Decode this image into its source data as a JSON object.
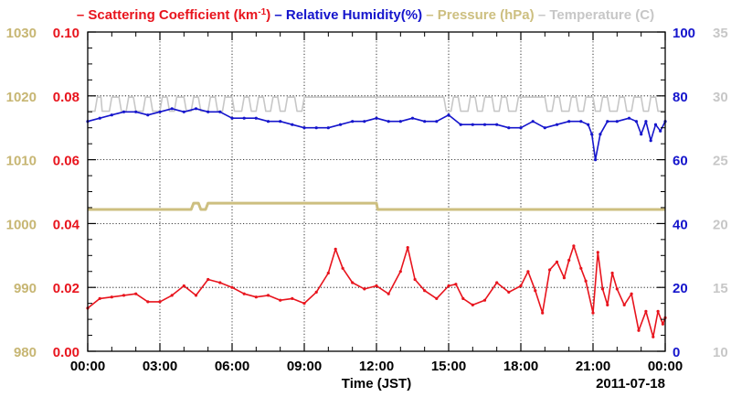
{
  "chart_data": {
    "type": "line",
    "legend": {
      "placement": "top",
      "items": [
        {
          "text": "Scattering Coefficient (km",
          "sup": "-1",
          "suffix": ")",
          "color": "#e8141d"
        },
        {
          "text": "Relative Humidity(%)",
          "color": "#1515cc"
        },
        {
          "text": "Pressure (hPa)",
          "color": "#cdbf80"
        },
        {
          "text": "Temperature (",
          "suffix": "C)",
          "color": "#c7c7c7"
        }
      ]
    },
    "xlabel": "Time (JST)",
    "date_label": "2011-07-18",
    "x_range": [
      0,
      24
    ],
    "x_ticks": [
      "00:00",
      "03:00",
      "06:00",
      "09:00",
      "12:00",
      "15:00",
      "18:00",
      "21:00",
      "00:00"
    ],
    "grid": true,
    "axes": {
      "pressure": {
        "side": "left-outer",
        "range": [
          980,
          1030
        ],
        "ticks": [
          "980",
          "990",
          "1000",
          "1010",
          "1020",
          "1030"
        ],
        "color": "#c7b673"
      },
      "scattering": {
        "side": "left-inner",
        "range": [
          0.0,
          0.1
        ],
        "ticks": [
          "0.00",
          "0.02",
          "0.04",
          "0.06",
          "0.08",
          "0.10"
        ],
        "color": "#e8141d"
      },
      "humidity": {
        "side": "right-inner",
        "range": [
          0,
          100
        ],
        "ticks": [
          "0",
          "20",
          "40",
          "60",
          "80",
          "100"
        ],
        "color": "#1515cc"
      },
      "temperature": {
        "side": "right-outer",
        "range": [
          10,
          35
        ],
        "ticks": [
          "10",
          "15",
          "20",
          "25",
          "30",
          "35"
        ],
        "color": "#c7c7c7"
      }
    },
    "series": [
      {
        "name": "Temperature",
        "axis": "temperature",
        "color": "#c7c7c7",
        "x": [
          0.0,
          0.3,
          0.4,
          0.55,
          0.6,
          0.9,
          1.0,
          1.3,
          1.4,
          1.6,
          1.7,
          1.9,
          2.0,
          2.3,
          2.4,
          2.6,
          2.7,
          3.0,
          3.1,
          3.3,
          3.4,
          3.6,
          3.7,
          4.0,
          4.1,
          4.3,
          4.4,
          4.6,
          4.7,
          5.0,
          5.1,
          5.3,
          5.4,
          5.6,
          5.7,
          6.0,
          6.1,
          6.4,
          6.5,
          6.7,
          6.8,
          7.0,
          7.1,
          7.3,
          7.4,
          7.6,
          7.7,
          7.9,
          8.0,
          8.2,
          8.3,
          8.6,
          8.7,
          8.9,
          9.0,
          9.2,
          9.3,
          14.8,
          14.9,
          15.1,
          15.2,
          15.4,
          15.5,
          15.8,
          15.9,
          16.1,
          16.2,
          16.4,
          16.5,
          16.8,
          16.9,
          17.1,
          17.2,
          17.4,
          17.5,
          17.8,
          17.9,
          19.0,
          19.1,
          19.3,
          19.4,
          19.6,
          19.7,
          20.0,
          20.1,
          20.3,
          20.4,
          20.6,
          20.7,
          21.0,
          21.1,
          21.3,
          21.4,
          21.6,
          21.7,
          22.0,
          22.1,
          22.3,
          22.4,
          22.6,
          22.7,
          23.0,
          23.1,
          23.3,
          23.4,
          23.6,
          23.7,
          24.0
        ],
        "values": [
          28.8,
          28.8,
          29.9,
          29.9,
          28.8,
          28.8,
          29.9,
          29.9,
          28.8,
          28.8,
          29.9,
          29.9,
          28.8,
          28.8,
          29.9,
          29.9,
          28.8,
          28.8,
          29.9,
          29.9,
          28.8,
          28.8,
          29.9,
          29.9,
          28.8,
          28.8,
          29.9,
          29.9,
          28.8,
          28.8,
          29.9,
          29.9,
          28.8,
          28.8,
          29.9,
          29.9,
          28.8,
          28.8,
          29.9,
          29.9,
          28.8,
          28.8,
          29.9,
          29.9,
          28.8,
          28.8,
          29.9,
          29.9,
          28.8,
          28.8,
          29.9,
          29.9,
          28.8,
          28.8,
          29.9,
          29.9,
          29.9,
          29.9,
          28.8,
          28.8,
          29.9,
          29.9,
          28.8,
          28.8,
          29.9,
          29.9,
          28.8,
          28.8,
          29.9,
          29.9,
          28.8,
          28.8,
          29.9,
          29.9,
          28.8,
          28.8,
          29.9,
          29.9,
          28.8,
          28.8,
          29.9,
          29.9,
          28.8,
          28.8,
          29.9,
          29.9,
          28.8,
          28.8,
          29.9,
          29.9,
          28.8,
          28.8,
          29.9,
          29.9,
          28.8,
          28.8,
          29.9,
          29.9,
          28.8,
          28.8,
          29.9,
          29.9,
          28.8,
          28.8,
          29.9,
          29.9,
          28.8,
          28.8
        ]
      },
      {
        "name": "Pressure",
        "axis": "pressure",
        "color": "#cdbf80",
        "x": [
          0.0,
          4.3,
          4.4,
          4.6,
          4.7,
          4.9,
          5.0,
          12.0,
          12.05,
          24.0
        ],
        "values": [
          1002.2,
          1002.2,
          1003.2,
          1003.2,
          1002.2,
          1002.2,
          1003.2,
          1003.2,
          1002.2,
          1002.2
        ]
      },
      {
        "name": "Relative Humidity",
        "axis": "humidity",
        "color": "#1515cc",
        "x": [
          0.0,
          0.5,
          1.0,
          1.5,
          2.0,
          2.5,
          3.0,
          3.5,
          4.0,
          4.5,
          5.0,
          5.5,
          6.0,
          6.5,
          7.0,
          7.5,
          8.0,
          8.5,
          9.0,
          9.5,
          10.0,
          10.5,
          11.0,
          11.5,
          12.0,
          12.5,
          13.0,
          13.5,
          14.0,
          14.5,
          15.0,
          15.5,
          16.0,
          16.5,
          17.0,
          17.5,
          18.0,
          18.5,
          19.0,
          19.5,
          20.0,
          20.5,
          20.8,
          20.95,
          21.1,
          21.3,
          21.6,
          22.0,
          22.5,
          22.8,
          23.0,
          23.2,
          23.4,
          23.6,
          23.8,
          24.0
        ],
        "values": [
          72,
          73,
          74,
          75,
          75,
          74,
          75,
          76,
          75,
          76,
          75,
          75,
          73,
          73,
          73,
          72,
          72,
          71,
          70,
          70,
          70,
          71,
          72,
          72,
          73,
          72,
          72,
          73,
          72,
          72,
          74,
          71,
          71,
          71,
          71,
          70,
          70,
          72,
          70,
          71,
          72,
          72,
          71,
          68,
          60,
          68,
          72,
          72,
          73,
          72,
          68,
          72,
          66,
          71,
          69,
          72
        ]
      },
      {
        "name": "Scattering Coefficient",
        "axis": "scattering",
        "color": "#e8141d",
        "x": [
          0.0,
          0.5,
          1.0,
          1.5,
          2.0,
          2.5,
          3.0,
          3.5,
          4.0,
          4.5,
          5.0,
          5.5,
          6.0,
          6.5,
          7.0,
          7.5,
          8.0,
          8.5,
          9.0,
          9.5,
          10.0,
          10.3,
          10.6,
          11.0,
          11.5,
          12.0,
          12.5,
          13.0,
          13.3,
          13.6,
          14.0,
          14.5,
          15.0,
          15.3,
          15.6,
          16.0,
          16.5,
          17.0,
          17.5,
          18.0,
          18.3,
          18.6,
          18.9,
          19.2,
          19.5,
          19.8,
          20.0,
          20.2,
          20.5,
          20.7,
          21.0,
          21.2,
          21.4,
          21.6,
          21.8,
          22.0,
          22.3,
          22.6,
          22.9,
          23.2,
          23.5,
          23.7,
          23.9,
          24.0
        ],
        "values": [
          0.0135,
          0.0165,
          0.017,
          0.0175,
          0.018,
          0.0155,
          0.0155,
          0.0175,
          0.0205,
          0.0175,
          0.0225,
          0.0215,
          0.02,
          0.018,
          0.017,
          0.0175,
          0.016,
          0.0165,
          0.015,
          0.0185,
          0.0245,
          0.032,
          0.026,
          0.0215,
          0.0195,
          0.0205,
          0.018,
          0.025,
          0.0325,
          0.0225,
          0.019,
          0.0165,
          0.0205,
          0.021,
          0.0165,
          0.0145,
          0.016,
          0.0215,
          0.0185,
          0.0205,
          0.025,
          0.019,
          0.012,
          0.0255,
          0.028,
          0.023,
          0.0285,
          0.033,
          0.026,
          0.022,
          0.012,
          0.031,
          0.0195,
          0.0145,
          0.0245,
          0.0195,
          0.0145,
          0.018,
          0.0065,
          0.0125,
          0.0045,
          0.0125,
          0.0085,
          0.0105
        ]
      }
    ]
  }
}
